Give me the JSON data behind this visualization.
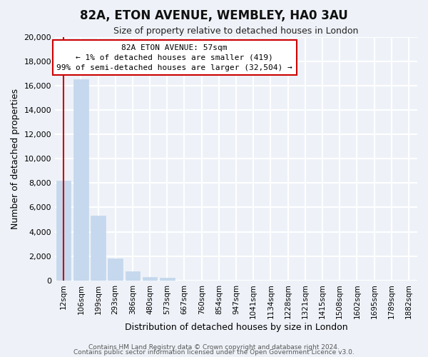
{
  "title": "82A, ETON AVENUE, WEMBLEY, HA0 3AU",
  "subtitle": "Size of property relative to detached houses in London",
  "xlabel": "Distribution of detached houses by size in London",
  "ylabel": "Number of detached properties",
  "categories": [
    "12sqm",
    "106sqm",
    "199sqm",
    "293sqm",
    "386sqm",
    "480sqm",
    "573sqm",
    "667sqm",
    "760sqm",
    "854sqm",
    "947sqm",
    "1041sqm",
    "1134sqm",
    "1228sqm",
    "1321sqm",
    "1415sqm",
    "1508sqm",
    "1602sqm",
    "1695sqm",
    "1789sqm",
    "1882sqm"
  ],
  "values": [
    8200,
    16500,
    5300,
    1800,
    750,
    280,
    220,
    0,
    0,
    0,
    0,
    0,
    0,
    0,
    0,
    0,
    0,
    0,
    0,
    0,
    0
  ],
  "bar_color": "#c5d8ed",
  "bar_edge_color": "#c5d8ed",
  "highlight_line_color": "#cc0000",
  "ylim": [
    0,
    20000
  ],
  "yticks": [
    0,
    2000,
    4000,
    6000,
    8000,
    10000,
    12000,
    14000,
    16000,
    18000,
    20000
  ],
  "annotation_title": "82A ETON AVENUE: 57sqm",
  "annotation_line1": "← 1% of detached houses are smaller (419)",
  "annotation_line2": "99% of semi-detached houses are larger (32,504) →",
  "annotation_box_color": "#ffffff",
  "annotation_border_color": "#cc0000",
  "footer1": "Contains HM Land Registry data © Crown copyright and database right 2024.",
  "footer2": "Contains public sector information licensed under the Open Government Licence v3.0.",
  "background_color": "#eef2f8",
  "grid_color": "#ffffff",
  "fig_background": "#eef2f8"
}
